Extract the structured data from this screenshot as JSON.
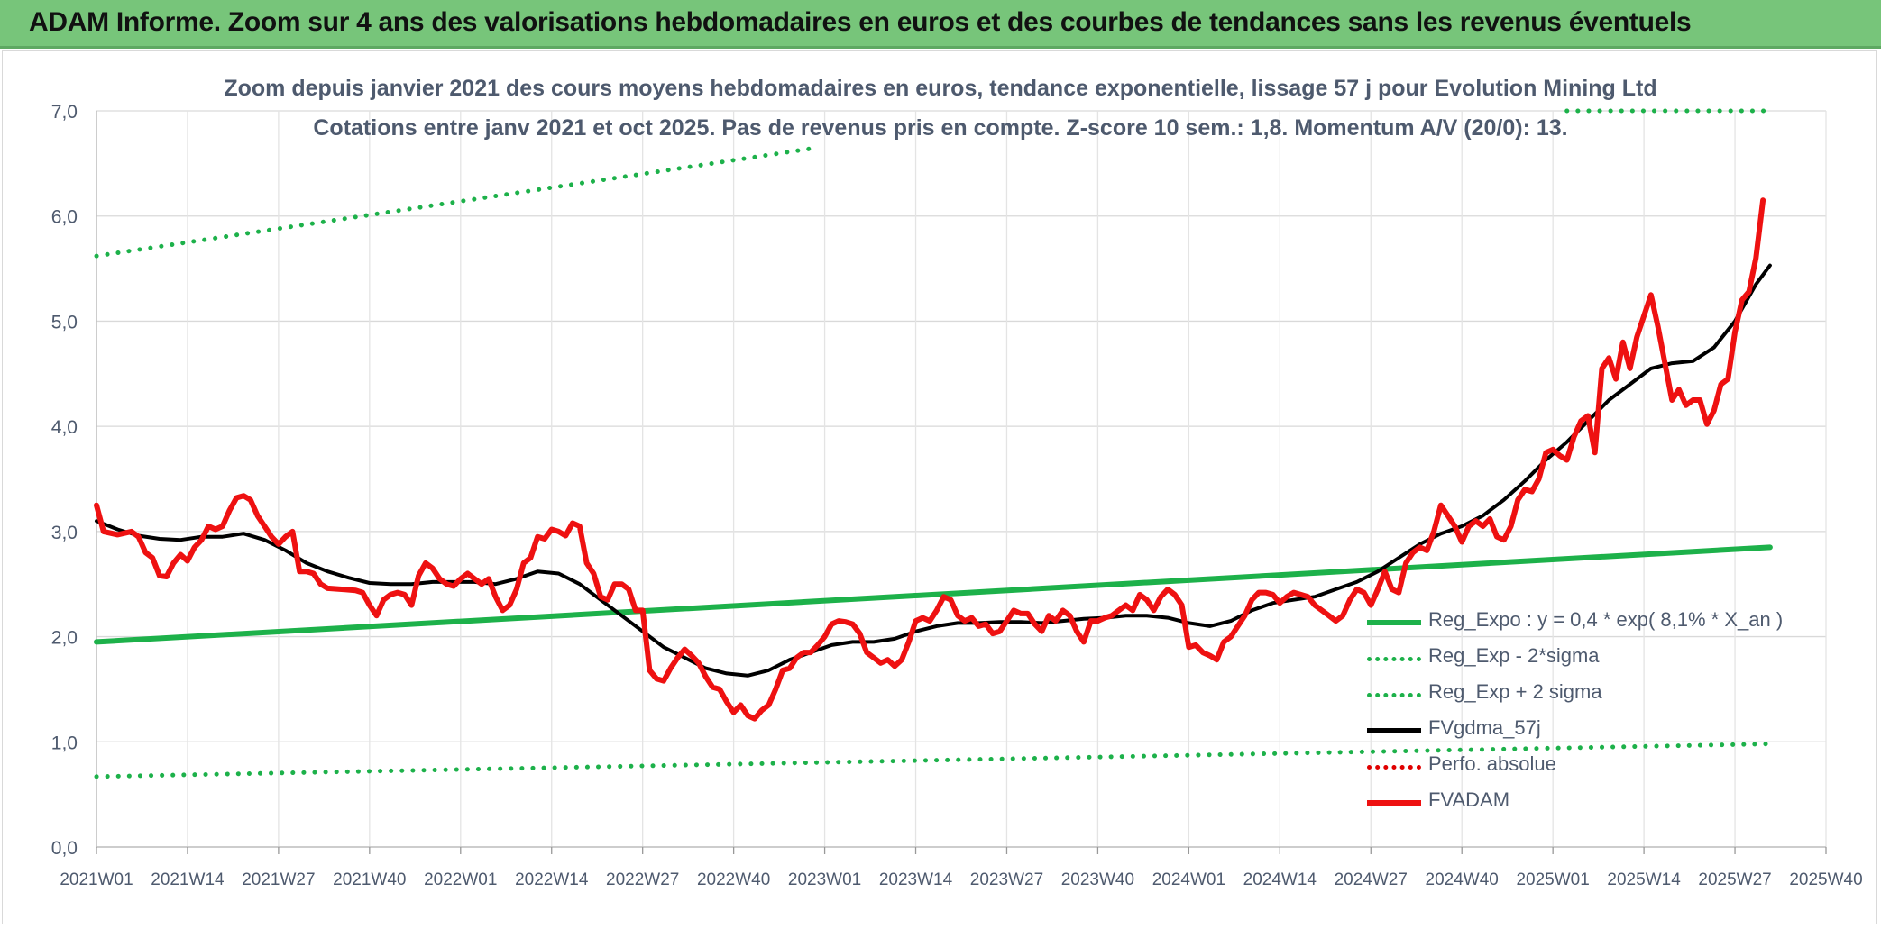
{
  "banner": {
    "title": "ADAM Informe. Zoom sur 4 ans des valorisations hebdomadaires en euros et des courbes de tendances sans les revenus éventuels"
  },
  "chart_data": {
    "type": "line",
    "title_line1": "Zoom depuis janvier 2021 des cours moyens hebdomadaires en euros, tendance exponentielle, lissage 57 j pour Evolution Mining Ltd",
    "title_line2": "Cotations entre janv 2021 et oct 2025. Pas de revenus pris en compte. Z-score 10 sem.: 1,8. Momentum A/V (20/0): 13.",
    "x_tick_labels": [
      "2021W01",
      "2021W14",
      "2021W27",
      "2021W40",
      "2022W01",
      "2022W14",
      "2022W27",
      "2022W40",
      "2023W01",
      "2023W14",
      "2023W27",
      "2023W40",
      "2024W01",
      "2024W14",
      "2024W27",
      "2024W40",
      "2025W01",
      "2025W14",
      "2025W27",
      "2025W40"
    ],
    "y_tick_labels": [
      "0,0",
      "1,0",
      "2,0",
      "3,0",
      "4,0",
      "5,0",
      "6,0",
      "7,0"
    ],
    "ylim": [
      0,
      7
    ],
    "grid": true,
    "legend_position": "bottom-right",
    "colors": {
      "trend": "#1db14a",
      "band": "#1db14a",
      "smooth": "#000000",
      "perfo": "#e00000",
      "price": "#ee1111",
      "axis_text": "#4e5a6e",
      "grid": "#d9d9d9"
    },
    "legend": [
      {
        "key": "reg_expo",
        "label": "Reg_Expo : y = 0,4 * exp( 8,1% *  X_an )",
        "style": "solid",
        "color": "#1db14a"
      },
      {
        "key": "reg_lower",
        "label": "Reg_Exp - 2*sigma",
        "style": "dotted",
        "color": "#1db14a"
      },
      {
        "key": "reg_upper",
        "label": "Reg_Exp + 2 sigma",
        "style": "dotted",
        "color": "#1db14a"
      },
      {
        "key": "fvgdma",
        "label": "FVgdma_57j",
        "style": "solid",
        "color": "#000000"
      },
      {
        "key": "perfo",
        "label": "Perfo. absolue",
        "style": "dotted",
        "color": "#e00000"
      },
      {
        "key": "fvadam",
        "label": "FVADAM",
        "style": "solid",
        "color": "#ee1111"
      }
    ],
    "series": {
      "fvadam": [
        [
          0,
          3.25
        ],
        [
          1,
          3.0
        ],
        [
          3,
          2.97
        ],
        [
          5,
          3.0
        ],
        [
          6,
          2.95
        ],
        [
          7,
          2.8
        ],
        [
          8,
          2.75
        ],
        [
          9,
          2.58
        ],
        [
          10,
          2.57
        ],
        [
          11,
          2.7
        ],
        [
          12,
          2.78
        ],
        [
          13,
          2.72
        ],
        [
          14,
          2.85
        ],
        [
          15,
          2.92
        ],
        [
          16,
          3.05
        ],
        [
          17,
          3.02
        ],
        [
          18,
          3.05
        ],
        [
          19,
          3.2
        ],
        [
          20,
          3.32
        ],
        [
          21,
          3.34
        ],
        [
          22,
          3.3
        ],
        [
          23,
          3.15
        ],
        [
          24,
          3.05
        ],
        [
          25,
          2.95
        ],
        [
          26,
          2.88
        ],
        [
          27,
          2.95
        ],
        [
          28,
          3.0
        ],
        [
          29,
          2.62
        ],
        [
          30,
          2.62
        ],
        [
          31,
          2.6
        ],
        [
          32,
          2.5
        ],
        [
          33,
          2.46
        ],
        [
          35,
          2.45
        ],
        [
          37,
          2.44
        ],
        [
          38,
          2.42
        ],
        [
          39,
          2.3
        ],
        [
          40,
          2.2
        ],
        [
          41,
          2.35
        ],
        [
          42,
          2.4
        ],
        [
          43,
          2.42
        ],
        [
          44,
          2.4
        ],
        [
          45,
          2.3
        ],
        [
          46,
          2.58
        ],
        [
          47,
          2.7
        ],
        [
          48,
          2.65
        ],
        [
          49,
          2.55
        ],
        [
          50,
          2.5
        ],
        [
          51,
          2.48
        ],
        [
          52,
          2.55
        ],
        [
          53,
          2.6
        ],
        [
          54,
          2.55
        ],
        [
          55,
          2.5
        ],
        [
          56,
          2.55
        ],
        [
          57,
          2.38
        ],
        [
          58,
          2.25
        ],
        [
          59,
          2.3
        ],
        [
          60,
          2.45
        ],
        [
          61,
          2.7
        ],
        [
          62,
          2.75
        ],
        [
          63,
          2.95
        ],
        [
          64,
          2.93
        ],
        [
          65,
          3.02
        ],
        [
          66,
          3.0
        ],
        [
          67,
          2.96
        ],
        [
          68,
          3.08
        ],
        [
          69,
          3.05
        ],
        [
          70,
          2.7
        ],
        [
          71,
          2.6
        ],
        [
          72,
          2.38
        ],
        [
          73,
          2.35
        ],
        [
          74,
          2.5
        ],
        [
          75,
          2.5
        ],
        [
          76,
          2.45
        ],
        [
          77,
          2.25
        ],
        [
          78,
          2.25
        ],
        [
          79,
          1.68
        ],
        [
          80,
          1.6
        ],
        [
          81,
          1.58
        ],
        [
          82,
          1.7
        ],
        [
          83,
          1.8
        ],
        [
          84,
          1.88
        ],
        [
          85,
          1.82
        ],
        [
          86,
          1.75
        ],
        [
          87,
          1.62
        ],
        [
          88,
          1.52
        ],
        [
          89,
          1.5
        ],
        [
          90,
          1.38
        ],
        [
          91,
          1.28
        ],
        [
          92,
          1.35
        ],
        [
          93,
          1.25
        ],
        [
          94,
          1.22
        ],
        [
          95,
          1.3
        ],
        [
          96,
          1.35
        ],
        [
          97,
          1.5
        ],
        [
          98,
          1.68
        ],
        [
          99,
          1.7
        ],
        [
          100,
          1.8
        ],
        [
          101,
          1.85
        ],
        [
          102,
          1.85
        ],
        [
          103,
          1.92
        ],
        [
          104,
          2.0
        ],
        [
          105,
          2.12
        ],
        [
          106,
          2.15
        ],
        [
          107,
          2.14
        ],
        [
          108,
          2.12
        ],
        [
          109,
          2.03
        ],
        [
          110,
          1.85
        ],
        [
          111,
          1.8
        ],
        [
          112,
          1.75
        ],
        [
          113,
          1.78
        ],
        [
          114,
          1.72
        ],
        [
          115,
          1.78
        ],
        [
          116,
          1.95
        ],
        [
          117,
          2.15
        ],
        [
          118,
          2.18
        ],
        [
          119,
          2.15
        ],
        [
          120,
          2.25
        ],
        [
          121,
          2.38
        ],
        [
          122,
          2.35
        ],
        [
          123,
          2.2
        ],
        [
          124,
          2.15
        ],
        [
          125,
          2.18
        ],
        [
          126,
          2.1
        ],
        [
          127,
          2.12
        ],
        [
          128,
          2.03
        ],
        [
          129,
          2.05
        ],
        [
          130,
          2.15
        ],
        [
          131,
          2.25
        ],
        [
          132,
          2.22
        ],
        [
          133,
          2.22
        ],
        [
          134,
          2.12
        ],
        [
          135,
          2.05
        ],
        [
          136,
          2.2
        ],
        [
          137,
          2.15
        ],
        [
          138,
          2.25
        ],
        [
          139,
          2.2
        ],
        [
          140,
          2.05
        ],
        [
          141,
          1.95
        ],
        [
          142,
          2.15
        ],
        [
          143,
          2.15
        ],
        [
          144,
          2.18
        ],
        [
          145,
          2.2
        ],
        [
          146,
          2.25
        ],
        [
          147,
          2.3
        ],
        [
          148,
          2.25
        ],
        [
          149,
          2.4
        ],
        [
          150,
          2.35
        ],
        [
          151,
          2.25
        ],
        [
          152,
          2.38
        ],
        [
          153,
          2.45
        ],
        [
          154,
          2.4
        ],
        [
          155,
          2.3
        ],
        [
          156,
          1.9
        ],
        [
          157,
          1.92
        ],
        [
          158,
          1.85
        ],
        [
          159,
          1.82
        ],
        [
          160,
          1.78
        ],
        [
          161,
          1.95
        ],
        [
          162,
          2.0
        ],
        [
          163,
          2.1
        ],
        [
          164,
          2.2
        ],
        [
          165,
          2.35
        ],
        [
          166,
          2.42
        ],
        [
          167,
          2.42
        ],
        [
          168,
          2.4
        ],
        [
          169,
          2.32
        ],
        [
          170,
          2.38
        ],
        [
          171,
          2.42
        ],
        [
          172,
          2.4
        ],
        [
          173,
          2.38
        ],
        [
          174,
          2.3
        ],
        [
          175,
          2.25
        ],
        [
          176,
          2.2
        ],
        [
          177,
          2.15
        ],
        [
          178,
          2.2
        ],
        [
          179,
          2.35
        ],
        [
          180,
          2.45
        ],
        [
          181,
          2.42
        ],
        [
          182,
          2.3
        ],
        [
          183,
          2.45
        ],
        [
          184,
          2.62
        ],
        [
          185,
          2.45
        ],
        [
          186,
          2.42
        ],
        [
          187,
          2.7
        ],
        [
          188,
          2.8
        ],
        [
          189,
          2.85
        ],
        [
          190,
          2.82
        ],
        [
          191,
          3.0
        ],
        [
          192,
          3.25
        ],
        [
          193,
          3.15
        ],
        [
          194,
          3.05
        ],
        [
          195,
          2.9
        ],
        [
          196,
          3.05
        ],
        [
          197,
          3.1
        ],
        [
          198,
          3.05
        ],
        [
          199,
          3.12
        ],
        [
          200,
          2.95
        ],
        [
          201,
          2.92
        ],
        [
          202,
          3.05
        ],
        [
          203,
          3.3
        ],
        [
          204,
          3.4
        ],
        [
          205,
          3.38
        ],
        [
          206,
          3.5
        ],
        [
          207,
          3.75
        ],
        [
          208,
          3.78
        ],
        [
          209,
          3.72
        ],
        [
          210,
          3.68
        ],
        [
          211,
          3.9
        ],
        [
          212,
          4.05
        ],
        [
          213,
          4.1
        ],
        [
          214,
          3.75
        ],
        [
          215,
          4.55
        ],
        [
          216,
          4.65
        ],
        [
          217,
          4.45
        ],
        [
          218,
          4.8
        ],
        [
          219,
          4.55
        ],
        [
          220,
          4.85
        ],
        [
          221,
          5.05
        ],
        [
          222,
          5.25
        ],
        [
          223,
          4.95
        ],
        [
          224,
          4.6
        ],
        [
          225,
          4.25
        ],
        [
          226,
          4.35
        ],
        [
          227,
          4.2
        ],
        [
          228,
          4.25
        ],
        [
          229,
          4.25
        ],
        [
          230,
          4.02
        ],
        [
          231,
          4.15
        ],
        [
          232,
          4.4
        ],
        [
          233,
          4.45
        ],
        [
          234,
          4.9
        ],
        [
          235,
          5.2
        ],
        [
          236,
          5.28
        ],
        [
          237,
          5.6
        ],
        [
          238,
          6.15
        ]
      ],
      "fvgdma": [
        [
          0,
          3.1
        ],
        [
          3,
          3.02
        ],
        [
          6,
          2.96
        ],
        [
          9,
          2.93
        ],
        [
          12,
          2.92
        ],
        [
          15,
          2.95
        ],
        [
          18,
          2.95
        ],
        [
          21,
          2.98
        ],
        [
          24,
          2.92
        ],
        [
          27,
          2.82
        ],
        [
          30,
          2.7
        ],
        [
          33,
          2.62
        ],
        [
          36,
          2.56
        ],
        [
          39,
          2.51
        ],
        [
          42,
          2.5
        ],
        [
          45,
          2.5
        ],
        [
          48,
          2.52
        ],
        [
          51,
          2.52
        ],
        [
          54,
          2.52
        ],
        [
          57,
          2.5
        ],
        [
          60,
          2.55
        ],
        [
          63,
          2.62
        ],
        [
          66,
          2.6
        ],
        [
          69,
          2.5
        ],
        [
          72,
          2.35
        ],
        [
          75,
          2.2
        ],
        [
          78,
          2.05
        ],
        [
          81,
          1.9
        ],
        [
          84,
          1.8
        ],
        [
          87,
          1.7
        ],
        [
          90,
          1.65
        ],
        [
          93,
          1.63
        ],
        [
          96,
          1.68
        ],
        [
          99,
          1.78
        ],
        [
          102,
          1.85
        ],
        [
          105,
          1.92
        ],
        [
          108,
          1.95
        ],
        [
          111,
          1.95
        ],
        [
          114,
          1.98
        ],
        [
          117,
          2.05
        ],
        [
          120,
          2.1
        ],
        [
          123,
          2.13
        ],
        [
          126,
          2.13
        ],
        [
          129,
          2.14
        ],
        [
          132,
          2.14
        ],
        [
          135,
          2.13
        ],
        [
          138,
          2.15
        ],
        [
          141,
          2.17
        ],
        [
          144,
          2.18
        ],
        [
          147,
          2.2
        ],
        [
          150,
          2.2
        ],
        [
          153,
          2.18
        ],
        [
          156,
          2.13
        ],
        [
          159,
          2.1
        ],
        [
          162,
          2.15
        ],
        [
          165,
          2.25
        ],
        [
          168,
          2.32
        ],
        [
          171,
          2.35
        ],
        [
          174,
          2.38
        ],
        [
          177,
          2.45
        ],
        [
          180,
          2.52
        ],
        [
          183,
          2.62
        ],
        [
          186,
          2.75
        ],
        [
          189,
          2.88
        ],
        [
          192,
          2.98
        ],
        [
          195,
          3.05
        ],
        [
          198,
          3.15
        ],
        [
          201,
          3.3
        ],
        [
          204,
          3.48
        ],
        [
          207,
          3.68
        ],
        [
          210,
          3.85
        ],
        [
          213,
          4.05
        ],
        [
          216,
          4.25
        ],
        [
          219,
          4.4
        ],
        [
          222,
          4.55
        ],
        [
          225,
          4.6
        ],
        [
          228,
          4.62
        ],
        [
          231,
          4.75
        ],
        [
          234,
          5.0
        ],
        [
          237,
          5.35
        ],
        [
          239,
          5.53
        ]
      ],
      "reg_expo": [
        [
          0,
          1.95
        ],
        [
          239,
          2.85
        ]
      ],
      "reg_lower": [
        [
          0,
          0.67
        ],
        [
          239,
          0.98
        ]
      ],
      "reg_upper": [
        [
          0,
          5.62
        ],
        [
          103,
          6.65
        ]
      ],
      "reg_upper_2": [
        [
          210,
          7.0
        ],
        [
          239,
          7.0
        ]
      ]
    }
  }
}
